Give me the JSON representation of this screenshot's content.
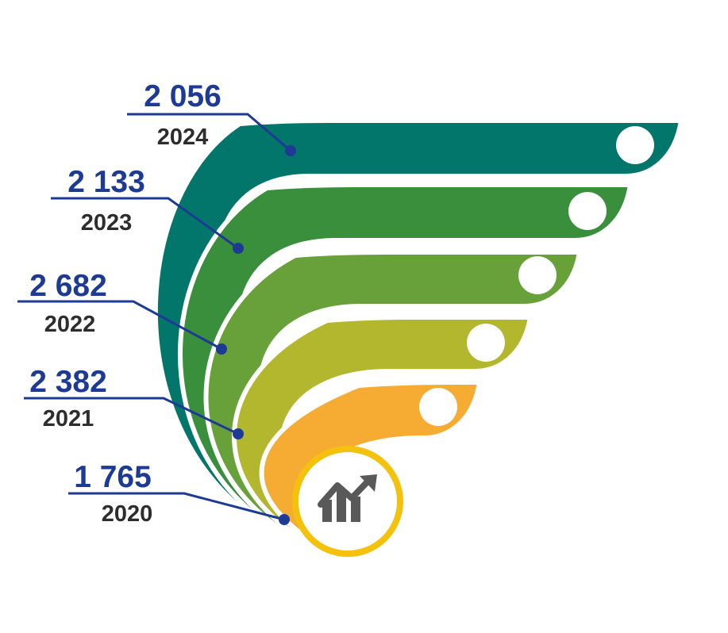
{
  "chart_data": {
    "type": "bar",
    "categories": [
      "2024",
      "2023",
      "2022",
      "2021",
      "2020"
    ],
    "values": [
      2056,
      2133,
      2682,
      2382,
      1765
    ],
    "value_labels": [
      "2 056",
      "2 133",
      "2 682",
      "2 382",
      "1 765"
    ],
    "colors": [
      "#02766a",
      "#3a8f3c",
      "#68a03a",
      "#b2b72e",
      "#f6ab33"
    ],
    "label_color": "#1d3a95",
    "year_color": "#2d2d2d",
    "ring_color": "#f4c20d",
    "icon": "growth-chart-icon"
  }
}
